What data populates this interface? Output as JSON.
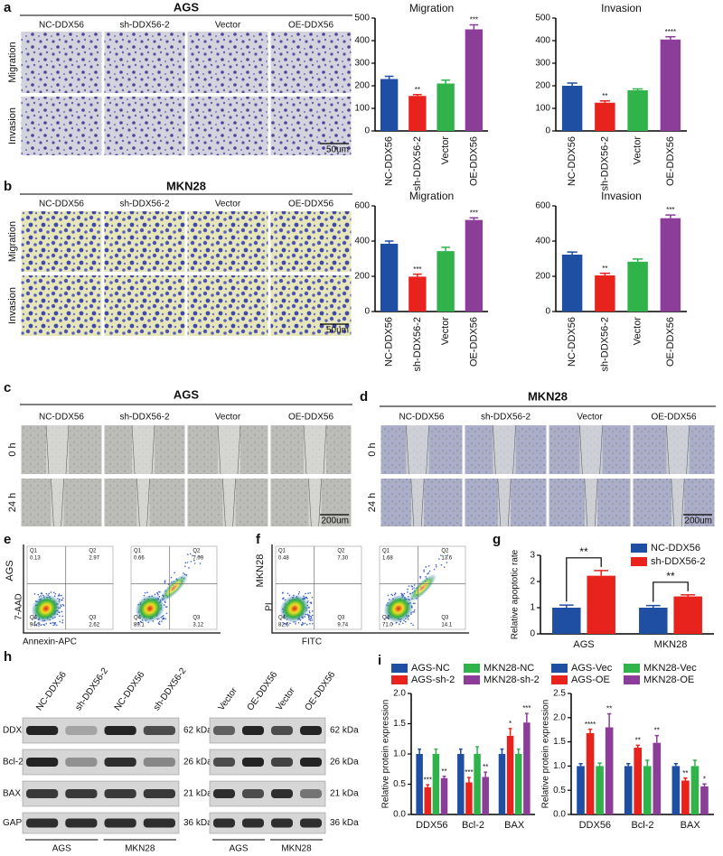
{
  "panels": {
    "a": {
      "letter": "a",
      "title": "AGS",
      "columns": [
        "NC-DDX56",
        "sh-DDX56-2",
        "Vector",
        "OE-DDX56"
      ],
      "rows": [
        "Migration",
        "Invasion"
      ],
      "scale": "50um"
    },
    "b": {
      "letter": "b",
      "title": "MKN28",
      "columns": [
        "NC-DDX56",
        "sh-DDX56-2",
        "Vector",
        "OE-DDX56"
      ],
      "rows": [
        "Migration",
        "Invasion"
      ],
      "scale": "50um"
    },
    "c": {
      "letter": "c",
      "title": "AGS",
      "columns": [
        "NC-DDX56",
        "sh-DDX56-2",
        "Vector",
        "OE-DDX56"
      ],
      "rows": [
        "0 h",
        "24 h"
      ],
      "scale": "200um"
    },
    "d": {
      "letter": "d",
      "title": "MKN28",
      "columns": [
        "NC-DDX56",
        "sh-DDX56-2",
        "Vector",
        "OE-DDX56"
      ],
      "rows": [
        "0 h",
        "24 h"
      ],
      "scale": "200um"
    },
    "e": {
      "letter": "e",
      "sample": "AGS",
      "x_label": "Annexin-APC",
      "y_label": "7-AAD",
      "plots": [
        [
          {
            "name": "Q1",
            "value": "0.13"
          },
          {
            "name": "Q2",
            "value": "2.97"
          },
          {
            "name": "Q4",
            "value": "94.3"
          },
          {
            "name": "Q3",
            "value": "2.62"
          }
        ],
        [
          {
            "name": "Q1",
            "value": "0.66"
          },
          {
            "name": "Q2",
            "value": "7.09"
          },
          {
            "name": "Q4",
            "value": "89.1"
          },
          {
            "name": "Q3",
            "value": "3.12"
          }
        ]
      ]
    },
    "f": {
      "letter": "f",
      "sample": "MKN28",
      "x_label": "FITC",
      "y_label": "PI",
      "plots": [
        [
          {
            "name": "Q1",
            "value": "0.48"
          },
          {
            "name": "Q2",
            "value": "7.30"
          },
          {
            "name": "Q4",
            "value": "82.5"
          },
          {
            "name": "Q3",
            "value": "9.74"
          }
        ],
        [
          {
            "name": "Q1",
            "value": "1.68"
          },
          {
            "name": "Q2",
            "value": "13.6"
          },
          {
            "name": "Q4",
            "value": "71.0"
          },
          {
            "name": "Q3",
            "value": "14.1"
          }
        ]
      ]
    },
    "g": {
      "letter": "g"
    },
    "h": {
      "letter": "h",
      "proteins": [
        "DDX56",
        "Bcl-2",
        "BAX",
        "GAPDH"
      ],
      "blots": [
        {
          "lanes": [
            "NC-DDX56",
            "sh-DDX56-2",
            "NC-DDX56",
            "sh-DDX56-2"
          ],
          "groups": [
            "AGS",
            "MKN28"
          ],
          "sizes": [
            "62 kDa",
            "26 kDa",
            "21 kDa",
            "36 kDa"
          ]
        },
        {
          "lanes": [
            "Vector",
            "OE-DDX56",
            "Vector",
            "OE-DDX56"
          ],
          "groups": [
            "AGS",
            "MKN28"
          ],
          "sizes": [
            "62 kDa",
            "26 kDa",
            "21 kDa",
            "36 kDa"
          ]
        }
      ]
    },
    "i": {
      "letter": "i"
    }
  },
  "chart_data": [
    {
      "type": "bar",
      "title": "Migration",
      "categories": [
        "NC-DDX56",
        "sh-DDX56-2",
        "Vector",
        "OE-DDX56"
      ],
      "values": [
        230,
        155,
        210,
        450
      ],
      "errors": [
        12,
        6,
        15,
        20
      ],
      "significance": [
        null,
        "**",
        null,
        "***"
      ],
      "colors": [
        "#1f4fa3",
        "#e8221c",
        "#2fb34a",
        "#8b3d99"
      ],
      "ylim": [
        0,
        500
      ],
      "yticks": [
        0,
        100,
        200,
        300,
        400,
        500
      ]
    },
    {
      "type": "bar",
      "title": "Invasion",
      "categories": [
        "NC-DDX56",
        "sh-DDX56-2",
        "Vector",
        "OE-DDX56"
      ],
      "values": [
        200,
        125,
        180,
        405
      ],
      "errors": [
        12,
        8,
        6,
        12
      ],
      "significance": [
        null,
        "**",
        null,
        "****"
      ],
      "colors": [
        "#1f4fa3",
        "#e8221c",
        "#2fb34a",
        "#8b3d99"
      ],
      "ylim": [
        0,
        500
      ],
      "yticks": [
        0,
        100,
        200,
        300,
        400,
        500
      ]
    },
    {
      "type": "bar",
      "title": "Migration",
      "categories": [
        "NC-DDX56",
        "sh-DDX56-2",
        "Vector",
        "OE-DDX56"
      ],
      "values": [
        385,
        198,
        343,
        520
      ],
      "errors": [
        15,
        14,
        22,
        12
      ],
      "significance": [
        null,
        "***",
        null,
        "***"
      ],
      "colors": [
        "#1f4fa3",
        "#e8221c",
        "#2fb34a",
        "#8b3d99"
      ],
      "ylim": [
        0,
        600
      ],
      "yticks": [
        0,
        200,
        400,
        600
      ]
    },
    {
      "type": "bar",
      "title": "Invasion",
      "categories": [
        "NC-DDX56",
        "sh-DDX56-2",
        "Vector",
        "OE-DDX56"
      ],
      "values": [
        323,
        205,
        283,
        530
      ],
      "errors": [
        15,
        12,
        15,
        18
      ],
      "significance": [
        null,
        "**",
        null,
        "***"
      ],
      "colors": [
        "#1f4fa3",
        "#e8221c",
        "#2fb34a",
        "#8b3d99"
      ],
      "ylim": [
        0,
        600
      ],
      "yticks": [
        0,
        200,
        400,
        600
      ]
    },
    {
      "type": "bar",
      "ylabel": "Relative apoptotic rate",
      "categories": [
        "AGS",
        "MKN28"
      ],
      "series": [
        {
          "name": "NC-DDX56",
          "color": "#1f4fa3",
          "values": [
            1.0,
            1.0
          ],
          "errors": [
            0.1,
            0.08
          ]
        },
        {
          "name": "sh-DDX56-2",
          "color": "#e8221c",
          "values": [
            2.22,
            1.43
          ],
          "errors": [
            0.2,
            0.06
          ]
        }
      ],
      "annotations": [
        "**",
        "**"
      ],
      "ylim": [
        0,
        3
      ],
      "yticks": [
        0,
        1,
        2,
        3
      ],
      "legend": "top-right"
    },
    {
      "type": "bar",
      "ylabel": "Relative protein expression",
      "categories": [
        "DDX56",
        "Bcl-2",
        "BAX"
      ],
      "series": [
        {
          "name": "AGS-NC",
          "color": "#1f4fa3",
          "values": [
            1,
            1,
            1
          ],
          "errors": [
            0.08,
            0.08,
            0.08
          ],
          "significance": [
            null,
            null,
            null
          ]
        },
        {
          "name": "AGS-sh-2",
          "color": "#e8221c",
          "values": [
            0.45,
            0.53,
            1.3
          ],
          "errors": [
            0.04,
            0.08,
            0.12
          ],
          "significance": [
            "***",
            "***",
            "*"
          ]
        },
        {
          "name": "MKN28-NC",
          "color": "#2fb34a",
          "values": [
            1,
            1,
            1
          ],
          "errors": [
            0.08,
            0.12,
            0.08
          ],
          "significance": [
            null,
            null,
            null
          ]
        },
        {
          "name": "MKN28-sh-2",
          "color": "#8b3d99",
          "values": [
            0.6,
            0.62,
            1.52
          ],
          "errors": [
            0.03,
            0.08,
            0.15
          ],
          "significance": [
            "**",
            "**",
            "***"
          ]
        }
      ],
      "ylim": [
        0,
        2
      ],
      "yticks": [
        {
          "value": 0,
          "label": "0.0"
        },
        0.5,
        {
          "value": 1,
          "label": "1.0"
        },
        1.5,
        {
          "value": 2,
          "label": "2.0"
        }
      ],
      "legend": "top"
    },
    {
      "type": "bar",
      "ylabel": "Relative protein expression",
      "categories": [
        "DDX56",
        "Bcl-2",
        "BAX"
      ],
      "series": [
        {
          "name": "AGS-Vec",
          "color": "#1f4fa3",
          "values": [
            1,
            1,
            1
          ],
          "errors": [
            0.05,
            0.05,
            0.05
          ],
          "significance": [
            null,
            null,
            null
          ]
        },
        {
          "name": "AGS-OE",
          "color": "#e8221c",
          "values": [
            1.68,
            1.38,
            0.7
          ],
          "errors": [
            0.08,
            0.05,
            0.05
          ],
          "significance": [
            "****",
            "**",
            "**"
          ]
        },
        {
          "name": "MKN28-Vec",
          "color": "#2fb34a",
          "values": [
            1,
            1,
            1
          ],
          "errors": [
            0.06,
            0.12,
            0.12
          ],
          "significance": [
            null,
            null,
            null
          ]
        },
        {
          "name": "MKN28-OE",
          "color": "#8b3d99",
          "values": [
            1.8,
            1.48,
            0.58
          ],
          "errors": [
            0.28,
            0.15,
            0.05
          ],
          "significance": [
            "**",
            "**",
            "*"
          ]
        }
      ],
      "ylim": [
        0,
        2.5
      ],
      "yticks": [
        {
          "value": 0,
          "label": "0.0"
        },
        0.5,
        {
          "value": 1,
          "label": "1.0"
        },
        1.5,
        {
          "value": 2,
          "label": "2.0"
        },
        2.5
      ],
      "legend": "top"
    }
  ]
}
